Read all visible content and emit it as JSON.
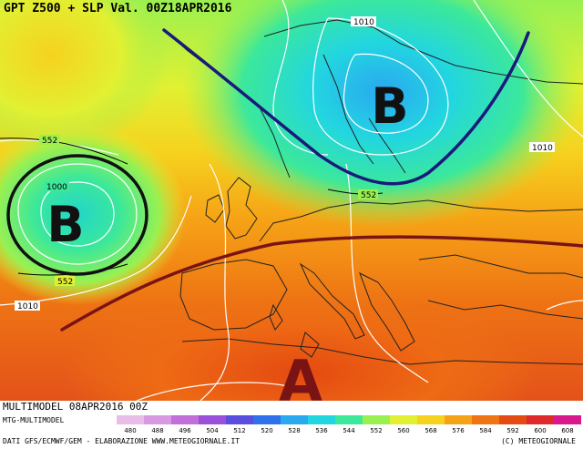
{
  "map": {
    "title": "GPT Z500 + SLP Val. 00Z18APR2016",
    "pressure_systems": [
      {
        "letter": "B",
        "meaning": "low"
      },
      {
        "letter": "B",
        "meaning": "low"
      },
      {
        "letter": "A",
        "meaning": "high"
      }
    ],
    "isobar_labels": [
      "1010",
      "1010",
      "1010",
      "1000"
    ],
    "height_labels": [
      "552",
      "552",
      "552"
    ],
    "colors": {
      "low_outline": "#111111",
      "trough_line": "#1a1a7a",
      "ridge_line": "#7a1414",
      "high_letter": "#7a1414",
      "coastline": "#222222",
      "isobar": "#ffffff"
    }
  },
  "footer": {
    "run_label": "MULTIMODEL 08APR2016 00Z",
    "model_label": "MTG-MULTIMODEL",
    "credits": "DATI GFS/ECMWF/GEM - ELABORAZIONE WWW.METEOGIORNALE.IT",
    "copyright": "(C) METEOGIORNALE",
    "scale": [
      {
        "value": "480",
        "color": "#e8bde8"
      },
      {
        "value": "488",
        "color": "#d79ae0"
      },
      {
        "value": "496",
        "color": "#c070d8"
      },
      {
        "value": "504",
        "color": "#9a50d8"
      },
      {
        "value": "512",
        "color": "#5a4ee0"
      },
      {
        "value": "520",
        "color": "#2f70ec"
      },
      {
        "value": "528",
        "color": "#2aa8f0"
      },
      {
        "value": "536",
        "color": "#22d6e0"
      },
      {
        "value": "544",
        "color": "#3ce89a"
      },
      {
        "value": "552",
        "color": "#9af050"
      },
      {
        "value": "560",
        "color": "#e2f032"
      },
      {
        "value": "568",
        "color": "#f6d21e"
      },
      {
        "value": "576",
        "color": "#f6a216"
      },
      {
        "value": "584",
        "color": "#ee7414"
      },
      {
        "value": "592",
        "color": "#e44a12"
      },
      {
        "value": "600",
        "color": "#de2a2a"
      },
      {
        "value": "608",
        "color": "#d8188c"
      }
    ]
  }
}
